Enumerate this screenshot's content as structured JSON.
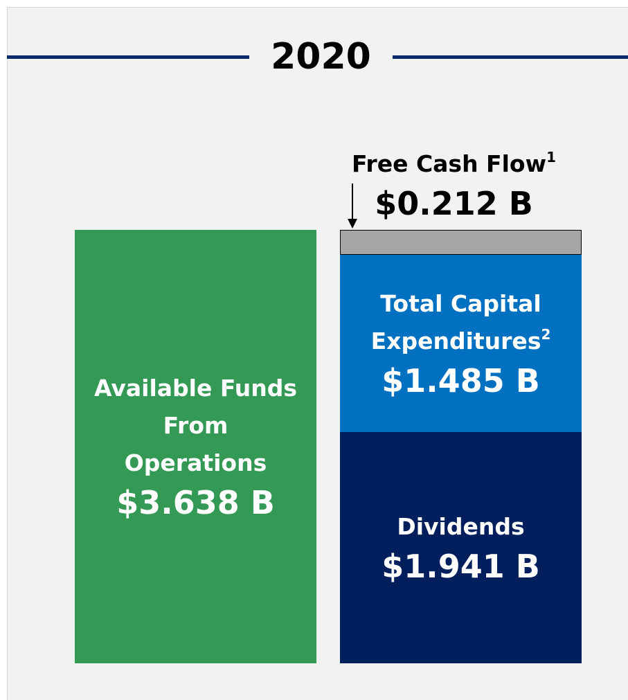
{
  "chart_data": {
    "type": "stacked_bar",
    "title": "2020",
    "bars": [
      {
        "segments": [
          {
            "name": "Available Funds From Operations",
            "color": "#339955",
            "value": 3.638,
            "value_label": "$3.638 B"
          }
        ]
      },
      {
        "segments": [
          {
            "name": "Dividends",
            "color": "#001f5c",
            "value": 1.941,
            "value_label": "$1.941 B"
          },
          {
            "name": "Total Capital Expenditures",
            "footnote": "2",
            "color": "#0070c0",
            "value": 1.485,
            "value_label": "$1.485 B"
          },
          {
            "name": "Free Cash Flow",
            "footnote": "1",
            "color": "#a6a6a6",
            "value": 0.212,
            "value_label": "$0.212 B",
            "label_outside": true
          }
        ]
      }
    ]
  }
}
